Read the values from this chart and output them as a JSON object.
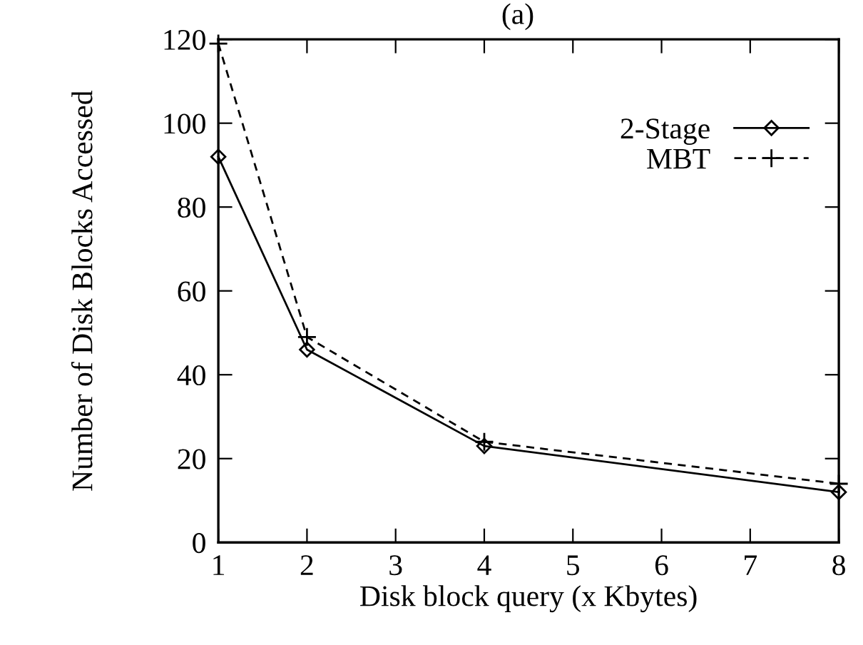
{
  "chart_data": {
    "type": "line",
    "title": "(a)",
    "xlabel": "Disk block query (x Kbytes)",
    "ylabel": "Number of Disk Blocks Accessed",
    "x": [
      1,
      2,
      4,
      8
    ],
    "series": [
      {
        "name": "2-Stage",
        "color": "#000000",
        "values": [
          92,
          46,
          23,
          12
        ],
        "marker": "diamond",
        "line_style": "solid"
      },
      {
        "name": "MBT",
        "color": "#000000",
        "values": [
          119,
          49,
          24,
          14
        ],
        "marker": "cross",
        "line_style": "dashed"
      }
    ],
    "xlim": [
      1,
      8
    ],
    "xticks": [
      1,
      2,
      3,
      4,
      5,
      6,
      7,
      8
    ],
    "ylim": [
      0,
      120
    ],
    "yticks": [
      0,
      20,
      40,
      60,
      80,
      100,
      120
    ],
    "grid": false,
    "legend": "top right"
  }
}
